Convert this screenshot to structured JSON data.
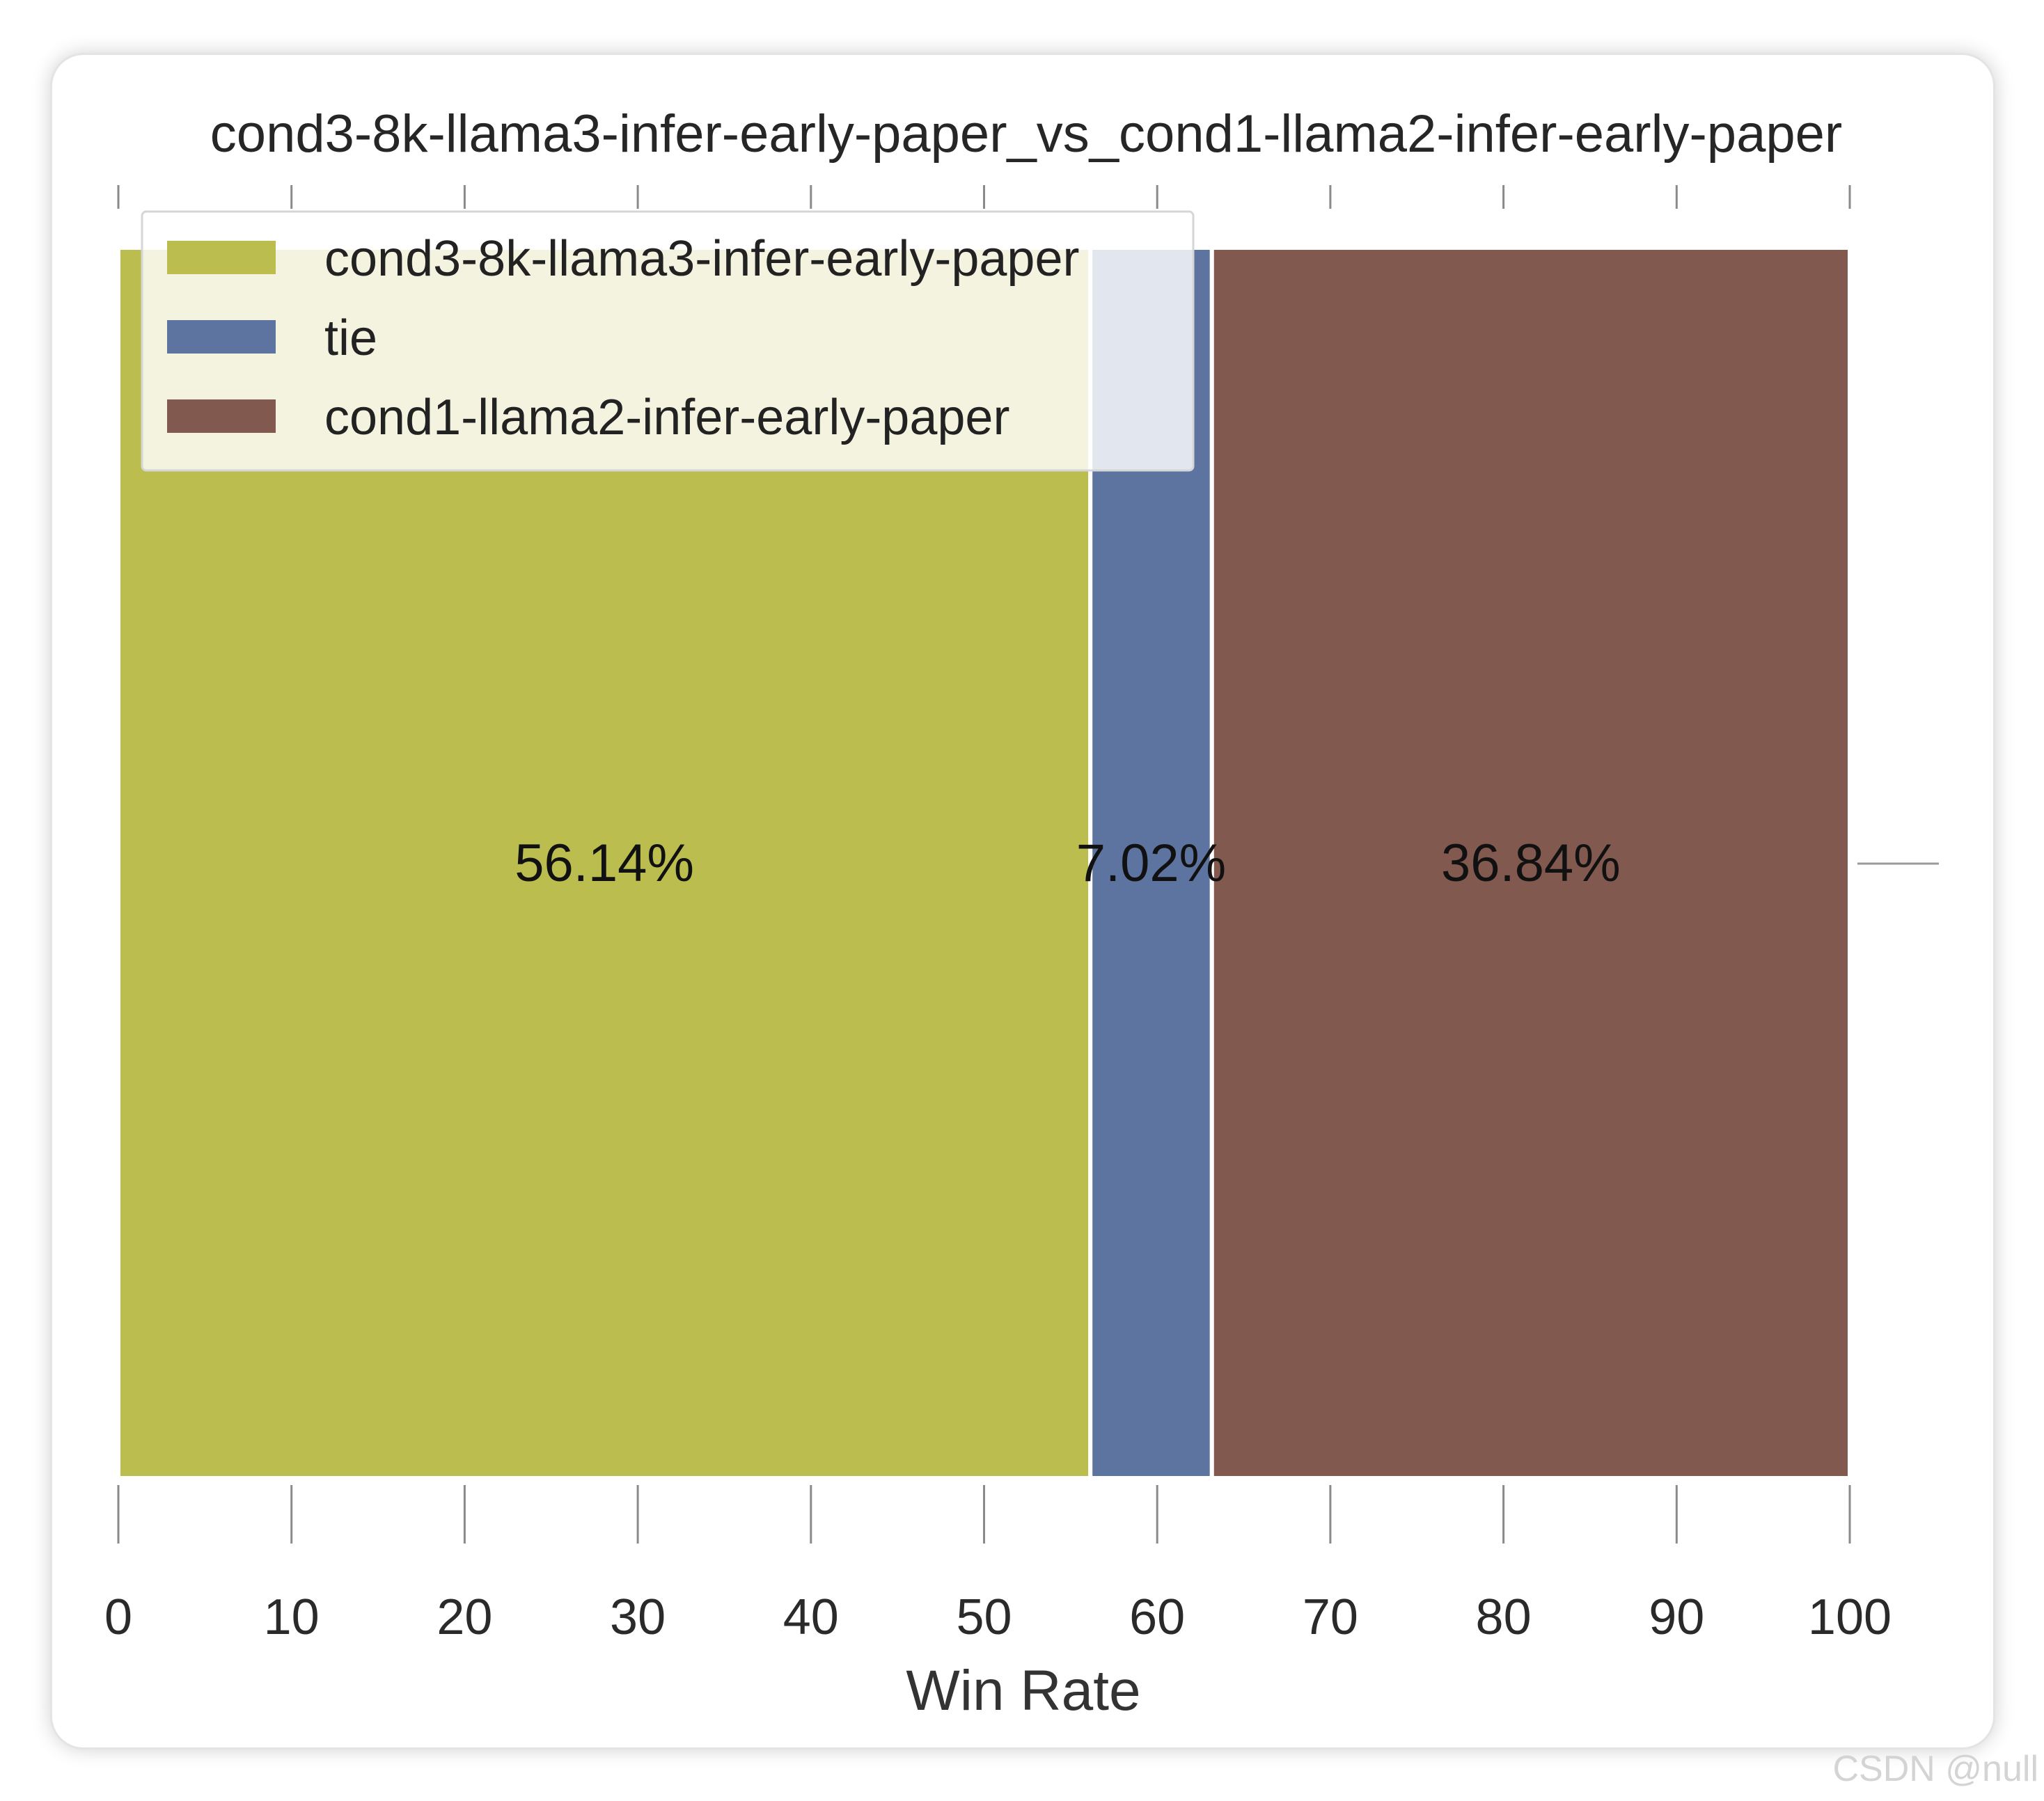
{
  "chart_data": {
    "type": "bar",
    "orientation": "horizontal-stacked",
    "title": "cond3-8k-llama3-infer-early-paper_vs_cond1-llama2-infer-early-paper",
    "xlabel": "Win Rate",
    "ylabel": "",
    "xlim": [
      0,
      100
    ],
    "xticks": [
      "0",
      "10",
      "20",
      "30",
      "40",
      "50",
      "60",
      "70",
      "80",
      "90",
      "100"
    ],
    "series": [
      {
        "name": "cond3-8k-llama3-infer-early-paper",
        "value": 56.14,
        "label": "56.14%",
        "color": "#bcbd4f"
      },
      {
        "name": "tie",
        "value": 7.02,
        "label": "7.02%",
        "color": "#5e74a0"
      },
      {
        "name": "cond1-llama2-infer-early-paper",
        "value": 36.84,
        "label": "36.84%",
        "color": "#82594e"
      }
    ],
    "legend_position": "top-left",
    "grid": false
  },
  "watermark": "CSDN @null"
}
